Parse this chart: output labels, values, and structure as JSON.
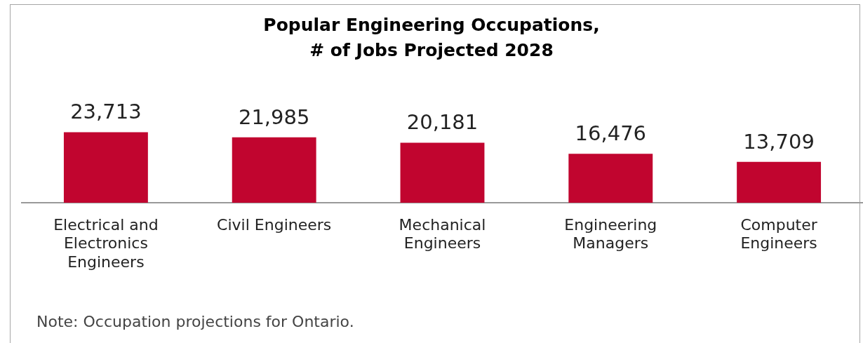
{
  "chart_data": {
    "type": "bar",
    "title": "Popular Engineering Occupations,\n# of Jobs Projected 2028",
    "categories": [
      "Electrical and Electronics Engineers",
      "Civil Engineers",
      "Mechanical Engineers",
      "Engineering Managers",
      "Computer Engineers"
    ],
    "values": [
      23713,
      21985,
      20181,
      16476,
      13709
    ],
    "color": "#c1052f",
    "value_labels": [
      "23,713",
      "21,985",
      "20,181",
      "16,476",
      "13,709"
    ],
    "grid": false,
    "legend": false,
    "annotations": [
      "Note: Occupation projections for Ontario."
    ]
  }
}
